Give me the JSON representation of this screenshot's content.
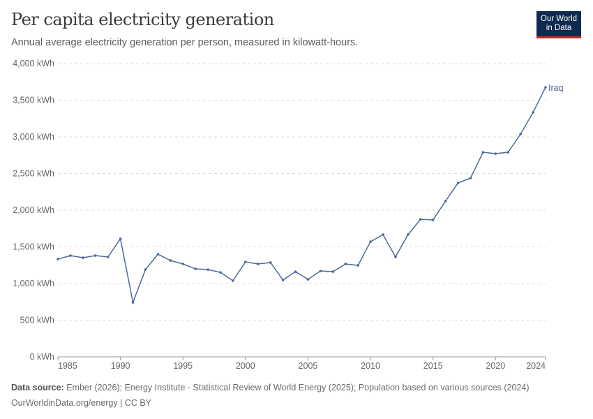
{
  "header": {
    "title": "Per capita electricity generation",
    "subtitle": "Annual average electricity generation per person, measured in kilowatt-hours.",
    "logo": [
      "Our World",
      "in Data"
    ]
  },
  "footer": {
    "source_label": "Data source:",
    "source_text": " Ember (2026); Energy Institute - Statistical Review of World Energy (2025); Population based on various sources (2024)",
    "link": "OurWorldinData.org/energy | CC BY"
  },
  "chart_data": {
    "type": "line",
    "title": "Per capita electricity generation",
    "xlim": [
      1985,
      2024
    ],
    "ylim": [
      0,
      4000
    ],
    "y_ticks": [
      0,
      500,
      1000,
      1500,
      2000,
      2500,
      3000,
      3500,
      4000
    ],
    "y_tick_labels": [
      "0 kWh",
      "500 kWh",
      "1,000 kWh",
      "1,500 kWh",
      "2,000 kWh",
      "2,500 kWh",
      "3,000 kWh",
      "3,500 kWh",
      "4,000 kWh"
    ],
    "x_ticks": [
      1985,
      1990,
      1995,
      2000,
      2005,
      2010,
      2015,
      2020,
      2024
    ],
    "x_tick_labels": [
      "1985",
      "1990",
      "1995",
      "2000",
      "2005",
      "2010",
      "2015",
      "2020",
      "2024"
    ],
    "grid": "horizontal dashed",
    "color": "#4c6a9c",
    "series": [
      {
        "name": "Iraq",
        "x": [
          1985,
          1986,
          1987,
          1988,
          1989,
          1990,
          1991,
          1992,
          1993,
          1994,
          1995,
          1996,
          1997,
          1998,
          1999,
          2000,
          2001,
          2002,
          2003,
          2004,
          2005,
          2006,
          2007,
          2008,
          2009,
          2010,
          2011,
          2012,
          2013,
          2014,
          2015,
          2016,
          2017,
          2018,
          2019,
          2020,
          2021,
          2022,
          2023,
          2024
        ],
        "values": [
          1333,
          1381,
          1352,
          1381,
          1362,
          1610,
          743,
          1190,
          1400,
          1314,
          1267,
          1200,
          1190,
          1152,
          1038,
          1295,
          1267,
          1286,
          1048,
          1162,
          1057,
          1171,
          1162,
          1267,
          1248,
          1571,
          1667,
          1362,
          1667,
          1876,
          1867,
          2124,
          2371,
          2438,
          2790,
          2771,
          2790,
          3038,
          3333,
          3676
        ]
      }
    ]
  }
}
